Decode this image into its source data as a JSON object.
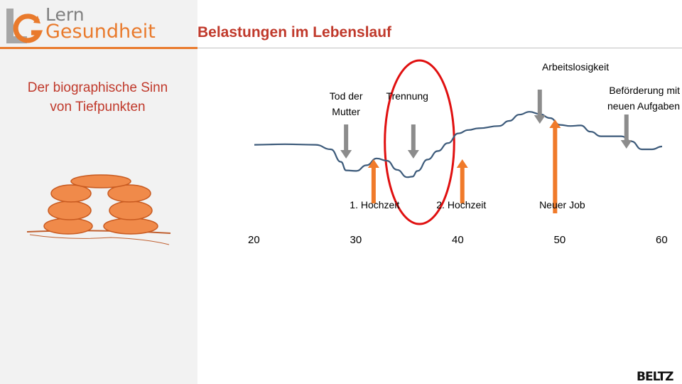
{
  "logo": {
    "line1": "Lern",
    "line2": "Gesundheit"
  },
  "title": "Belastungen im Lebenslauf",
  "subtitle": [
    "Der biographische Sinn",
    "von Tiefpunkten"
  ],
  "publisher": "BELTZ",
  "colors": {
    "accent": "#e97a2c",
    "title": "#c0392b",
    "curve": "#3c5a7a",
    "arrow_down": "#8c8c8c",
    "arrow_up": "#f07a2a",
    "ellipse": "#e01010",
    "stones": "#f08a4a"
  },
  "chart_data": {
    "type": "line",
    "x_ticks": [
      20,
      30,
      40,
      50,
      60
    ],
    "series": [
      {
        "x": [
          20,
          23,
          26,
          27.5,
          28.5,
          29,
          30,
          31,
          32,
          33,
          34,
          35,
          35.5,
          36,
          37,
          38,
          39,
          40,
          41,
          42,
          44,
          45,
          46,
          47,
          48,
          49,
          50,
          51,
          52,
          53,
          54,
          56,
          57,
          58,
          59,
          60
        ],
        "y": [
          0.58,
          0.59,
          0.58,
          0.5,
          0.28,
          0.13,
          0.12,
          0.22,
          0.34,
          0.3,
          0.14,
          0.01,
          0.02,
          0.12,
          0.32,
          0.47,
          0.61,
          0.78,
          0.84,
          0.87,
          0.91,
          1.0,
          1.11,
          1.16,
          1.12,
          1.05,
          0.93,
          0.91,
          0.92,
          0.81,
          0.73,
          0.73,
          0.64,
          0.5,
          0.5,
          0.55
        ]
      }
    ],
    "events_above": [
      {
        "label": "Tod der\nMutter",
        "x": 29.0
      },
      {
        "label": "Trennung",
        "x": 35.0
      },
      {
        "label": "Arbeitslosigkeit",
        "x": 51.5
      },
      {
        "label": "Beförderung mit\nneuen Aufgaben",
        "x": 58.3
      }
    ],
    "events_below": [
      {
        "label": "1. Hochzeit",
        "x": 31.8
      },
      {
        "label": "2. Hochzeit",
        "x": 40.3
      },
      {
        "label": "Neuer Job",
        "x": 50.2
      }
    ],
    "highlight_range_x": [
      32.8,
      39.6
    ]
  }
}
